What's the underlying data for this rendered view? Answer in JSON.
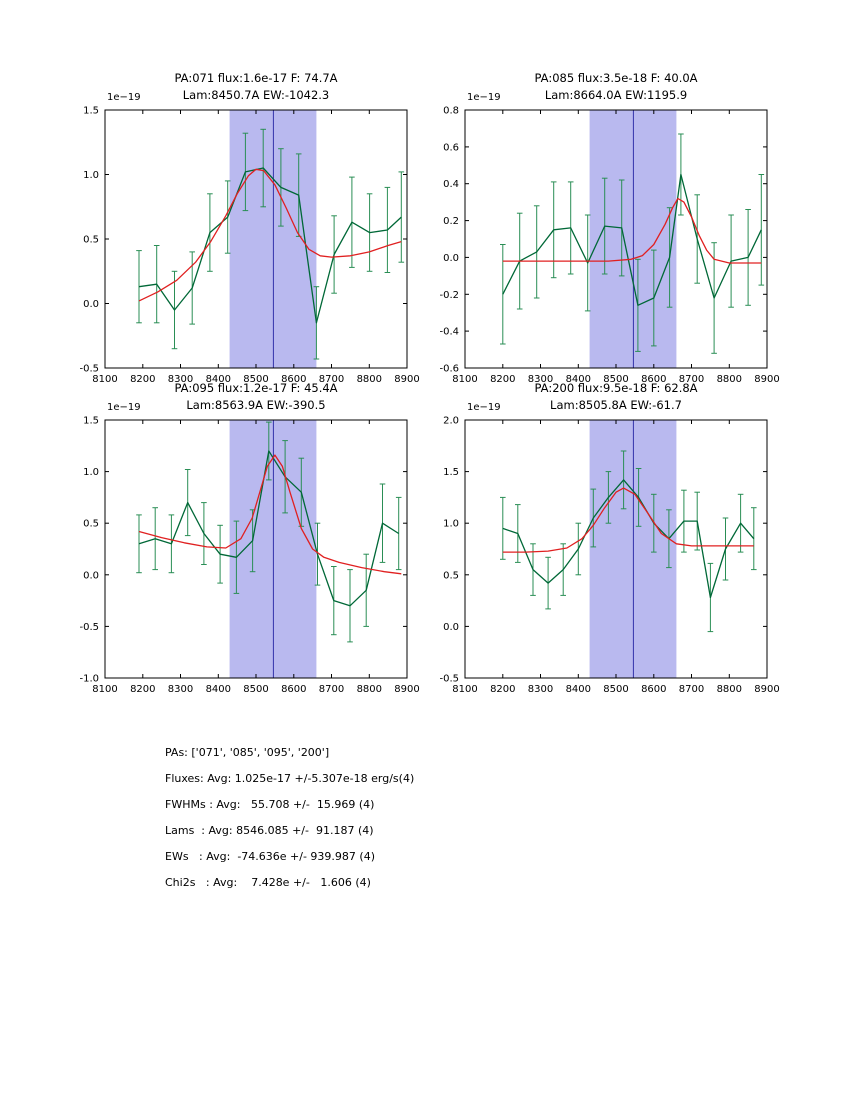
{
  "colors": {
    "background": "#ffffff",
    "frame": "#000000",
    "band": "#b9b9ef",
    "vline": "#3333aa",
    "data_line": "#006837",
    "err_line": "#2a8e55",
    "fit_line": "#e02020"
  },
  "summary": {
    "lines": [
      "PAs: ['071', '085', '095', '200']",
      "Fluxes: Avg: 1.025e-17 +/-5.307e-18 erg/s(4)",
      "FWHMs : Avg:   55.708 +/-  15.969 (4)",
      "Lams  : Avg: 8546.085 +/-  91.187 (4)",
      "EWs   : Avg:  -74.636e +/- 939.987 (4)",
      "Chi2s   : Avg:    7.428e +/-   1.606 (4)"
    ]
  },
  "chart_data": [
    {
      "type": "line",
      "title1": "PA:071 flux:1.6e-17 F: 74.7A",
      "title2": "Lam:8450.7A EW:-1042.3",
      "offset_label": "1e−19",
      "xlim": [
        8100,
        8900
      ],
      "ylim": [
        -0.5,
        1.5
      ],
      "xticks": [
        8100,
        8200,
        8300,
        8400,
        8500,
        8600,
        8700,
        8800,
        8900
      ],
      "yticks": [
        -0.5,
        0.0,
        0.5,
        1.0,
        1.5
      ],
      "band": [
        8430,
        8660
      ],
      "vline": 8546,
      "grid": false,
      "series": [
        {
          "name": "data",
          "role": "measured-spectrum",
          "x": [
            8190,
            8237,
            8284,
            8331,
            8378,
            8425,
            8472,
            8519,
            8566,
            8613,
            8660,
            8707,
            8754,
            8801,
            8848,
            8885
          ],
          "y": [
            0.13,
            0.15,
            -0.05,
            0.12,
            0.55,
            0.67,
            1.02,
            1.05,
            0.9,
            0.84,
            -0.15,
            0.38,
            0.63,
            0.55,
            0.57,
            0.67
          ],
          "yerr": [
            0.28,
            0.3,
            0.3,
            0.28,
            0.3,
            0.28,
            0.3,
            0.3,
            0.3,
            0.32,
            0.28,
            0.3,
            0.35,
            0.3,
            0.33,
            0.35
          ]
        },
        {
          "name": "fit",
          "role": "gaussian-fit",
          "x": [
            8190,
            8240,
            8290,
            8340,
            8380,
            8420,
            8450,
            8480,
            8500,
            8520,
            8550,
            8580,
            8610,
            8640,
            8670,
            8700,
            8750,
            8800,
            8850,
            8885
          ],
          "y": [
            0.02,
            0.09,
            0.18,
            0.32,
            0.48,
            0.68,
            0.85,
            0.99,
            1.04,
            1.03,
            0.92,
            0.74,
            0.55,
            0.42,
            0.37,
            0.36,
            0.37,
            0.4,
            0.45,
            0.48
          ]
        }
      ]
    },
    {
      "type": "line",
      "title1": "PA:085 flux:3.5e-18 F: 40.0A",
      "title2": "Lam:8664.0A EW:1195.9",
      "offset_label": "1e−19",
      "xlim": [
        8100,
        8900
      ],
      "ylim": [
        -0.6,
        0.8
      ],
      "xticks": [
        8100,
        8200,
        8300,
        8400,
        8500,
        8600,
        8700,
        8800,
        8900
      ],
      "yticks": [
        -0.6,
        -0.4,
        -0.2,
        0.0,
        0.2,
        0.4,
        0.6,
        0.8
      ],
      "band": [
        8430,
        8660
      ],
      "vline": 8546,
      "grid": false,
      "series": [
        {
          "name": "data",
          "role": "measured-spectrum",
          "x": [
            8200,
            8245,
            8290,
            8335,
            8380,
            8425,
            8470,
            8515,
            8558,
            8600,
            8642,
            8672,
            8715,
            8760,
            8805,
            8850,
            8885
          ],
          "y": [
            -0.2,
            -0.02,
            0.03,
            0.15,
            0.16,
            -0.03,
            0.17,
            0.16,
            -0.26,
            -0.22,
            0.0,
            0.45,
            0.1,
            -0.22,
            -0.02,
            0.0,
            0.15
          ],
          "yerr": [
            0.27,
            0.26,
            0.25,
            0.26,
            0.25,
            0.26,
            0.26,
            0.26,
            0.25,
            0.26,
            0.27,
            0.22,
            0.24,
            0.3,
            0.25,
            0.26,
            0.3
          ]
        },
        {
          "name": "fit",
          "role": "gaussian-fit",
          "x": [
            8200,
            8300,
            8400,
            8480,
            8540,
            8570,
            8600,
            8630,
            8650,
            8664,
            8680,
            8700,
            8720,
            8740,
            8760,
            8800,
            8885
          ],
          "y": [
            -0.02,
            -0.02,
            -0.02,
            -0.02,
            -0.01,
            0.01,
            0.07,
            0.18,
            0.27,
            0.32,
            0.3,
            0.22,
            0.12,
            0.04,
            -0.01,
            -0.03,
            -0.03
          ]
        }
      ]
    },
    {
      "type": "line",
      "title1": "PA:095 flux:1.2e-17 F: 45.4A",
      "title2": "Lam:8563.9A EW:-390.5",
      "offset_label": "1e−19",
      "xlim": [
        8100,
        8900
      ],
      "ylim": [
        -1.0,
        1.5
      ],
      "xticks": [
        8100,
        8200,
        8300,
        8400,
        8500,
        8600,
        8700,
        8800,
        8900
      ],
      "yticks": [
        -1.0,
        -0.5,
        0.0,
        0.5,
        1.0,
        1.5
      ],
      "band": [
        8430,
        8660
      ],
      "vline": 8546,
      "grid": false,
      "series": [
        {
          "name": "data",
          "role": "measured-spectrum",
          "x": [
            8190,
            8233,
            8276,
            8319,
            8362,
            8405,
            8448,
            8491,
            8534,
            8577,
            8620,
            8663,
            8706,
            8749,
            8792,
            8835,
            8878
          ],
          "y": [
            0.3,
            0.35,
            0.3,
            0.7,
            0.4,
            0.2,
            0.17,
            0.33,
            1.2,
            0.95,
            0.8,
            0.2,
            -0.25,
            -0.3,
            -0.15,
            0.5,
            0.4
          ],
          "yerr": [
            0.28,
            0.3,
            0.28,
            0.32,
            0.3,
            0.28,
            0.35,
            0.3,
            0.28,
            0.35,
            0.33,
            0.3,
            0.33,
            0.35,
            0.35,
            0.38,
            0.35
          ]
        },
        {
          "name": "fit",
          "role": "gaussian-fit",
          "x": [
            8190,
            8250,
            8310,
            8370,
            8420,
            8460,
            8490,
            8510,
            8530,
            8550,
            8570,
            8590,
            8620,
            8650,
            8680,
            8720,
            8780,
            8840,
            8885
          ],
          "y": [
            0.42,
            0.36,
            0.31,
            0.27,
            0.26,
            0.35,
            0.55,
            0.8,
            1.05,
            1.16,
            1.05,
            0.8,
            0.45,
            0.25,
            0.17,
            0.12,
            0.07,
            0.03,
            0.01
          ]
        }
      ]
    },
    {
      "type": "line",
      "title1": "PA:200 flux:9.5e-18 F: 62.8A",
      "title2": "Lam:8505.8A EW:-61.7",
      "offset_label": "1e−19",
      "xlim": [
        8100,
        8900
      ],
      "ylim": [
        -0.5,
        2.0
      ],
      "xticks": [
        8100,
        8200,
        8300,
        8400,
        8500,
        8600,
        8700,
        8800,
        8900
      ],
      "yticks": [
        -0.5,
        0.0,
        0.5,
        1.0,
        1.5,
        2.0
      ],
      "band": [
        8430,
        8660
      ],
      "vline": 8546,
      "grid": false,
      "series": [
        {
          "name": "data",
          "role": "measured-spectrum",
          "x": [
            8200,
            8240,
            8280,
            8320,
            8360,
            8400,
            8440,
            8480,
            8520,
            8560,
            8600,
            8640,
            8680,
            8715,
            8750,
            8790,
            8830,
            8865
          ],
          "y": [
            0.95,
            0.9,
            0.55,
            0.42,
            0.55,
            0.75,
            1.05,
            1.25,
            1.42,
            1.25,
            1.0,
            0.85,
            1.02,
            1.02,
            0.28,
            0.75,
            1.0,
            0.85
          ],
          "yerr": [
            0.3,
            0.28,
            0.25,
            0.25,
            0.25,
            0.25,
            0.28,
            0.25,
            0.28,
            0.28,
            0.28,
            0.28,
            0.3,
            0.28,
            0.33,
            0.3,
            0.28,
            0.3
          ]
        },
        {
          "name": "fit",
          "role": "gaussian-fit",
          "x": [
            8200,
            8260,
            8320,
            8370,
            8410,
            8440,
            8470,
            8500,
            8520,
            8550,
            8580,
            8620,
            8660,
            8700,
            8760,
            8820,
            8865
          ],
          "y": [
            0.72,
            0.72,
            0.73,
            0.76,
            0.85,
            0.98,
            1.15,
            1.3,
            1.34,
            1.28,
            1.12,
            0.9,
            0.8,
            0.78,
            0.78,
            0.78,
            0.78
          ]
        }
      ]
    }
  ]
}
